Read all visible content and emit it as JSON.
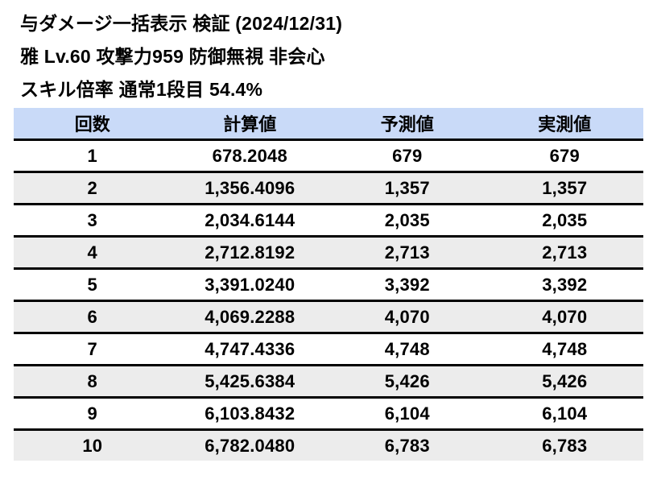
{
  "header": {
    "title": "与ダメージ一括表示 検証 (2024/12/31)",
    "subtitle": "雅 Lv.60 攻撃力959 防御無視 非会心",
    "skill_line": "スキル倍率 通常1段目 54.4%"
  },
  "table": {
    "headers": [
      "回数",
      "計算値",
      "予測値",
      "実測値"
    ],
    "rows": [
      [
        "1",
        "678.2048",
        "679",
        "679"
      ],
      [
        "2",
        "1,356.4096",
        "1,357",
        "1,357"
      ],
      [
        "3",
        "2,034.6144",
        "2,035",
        "2,035"
      ],
      [
        "4",
        "2,712.8192",
        "2,713",
        "2,713"
      ],
      [
        "5",
        "3,391.0240",
        "3,392",
        "3,392"
      ],
      [
        "6",
        "4,069.2288",
        "4,070",
        "4,070"
      ],
      [
        "7",
        "4,747.4336",
        "4,748",
        "4,748"
      ],
      [
        "8",
        "5,425.6384",
        "5,426",
        "5,426"
      ],
      [
        "9",
        "6,103.8432",
        "6,104",
        "6,104"
      ],
      [
        "10",
        "6,782.0480",
        "6,783",
        "6,783"
      ]
    ]
  },
  "chart_data": {
    "type": "table",
    "title": "与ダメージ一括表示 検証 (2024/12/31)",
    "subtitle": "雅 Lv.60 攻撃力959 防御無視 非会心 / スキル倍率 通常1段目 54.4%",
    "columns": [
      "回数",
      "計算値",
      "予測値",
      "実測値"
    ],
    "rows": [
      [
        1,
        678.2048,
        679,
        679
      ],
      [
        2,
        1356.4096,
        1357,
        1357
      ],
      [
        3,
        2034.6144,
        2035,
        2035
      ],
      [
        4,
        2712.8192,
        2713,
        2713
      ],
      [
        5,
        3391.024,
        3392,
        3392
      ],
      [
        6,
        4069.2288,
        4070,
        4070
      ],
      [
        7,
        4747.4336,
        4748,
        4748
      ],
      [
        8,
        5425.6384,
        5426,
        5426
      ],
      [
        9,
        6103.8432,
        6104,
        6104
      ],
      [
        10,
        6782.048,
        6783,
        6783
      ]
    ],
    "layout": {
      "header_row": true,
      "alternating_row_shading": true,
      "row_separators": "thick-black-horizontal",
      "vertical_gridlines": false,
      "cell_alignment": "center"
    }
  },
  "colors": {
    "page_bg": "#ffffff",
    "header_bg": "#c9daf8",
    "row_alt_bg": "#ececec",
    "border": "#000000",
    "text": "#000000"
  }
}
